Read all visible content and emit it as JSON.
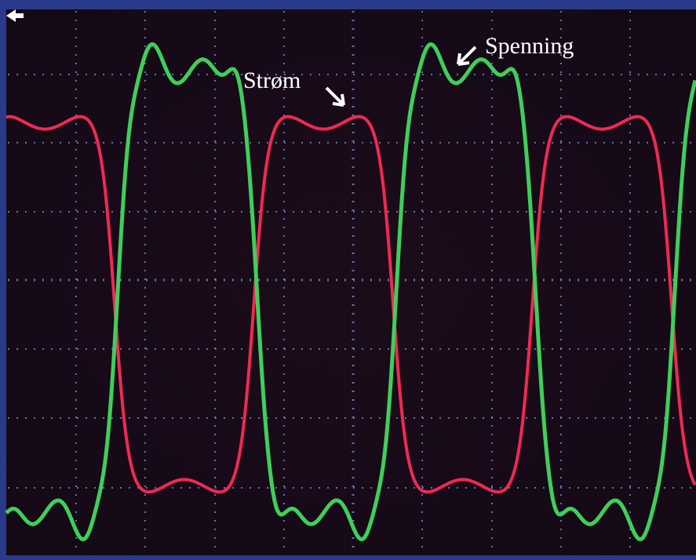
{
  "annotations": {
    "current": "Strøm",
    "voltage": "Spenning"
  }
}
